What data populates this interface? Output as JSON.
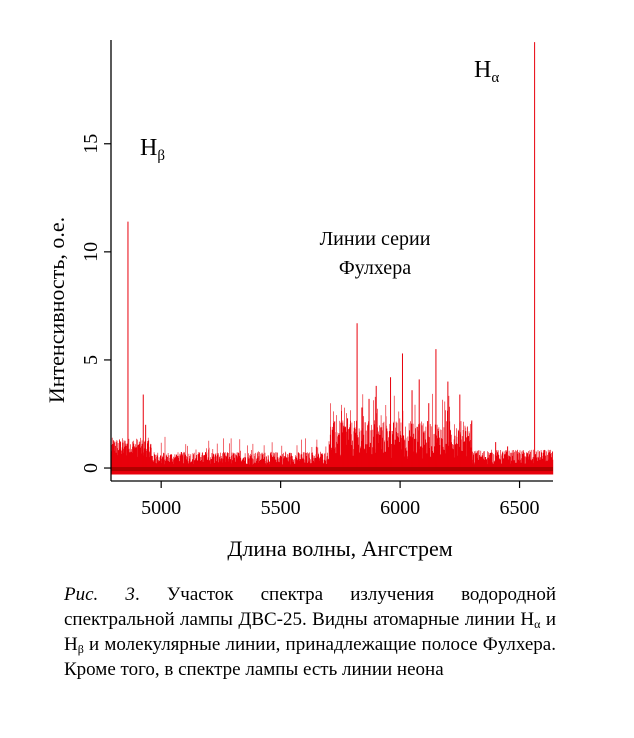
{
  "chart_data": {
    "type": "line",
    "xlabel": "Длина волны, Ангстрем",
    "ylabel": "Интенсивность, о.е.",
    "xlim": [
      4790,
      6640
    ],
    "ylim": [
      -0.6,
      19.8
    ],
    "xticks": [
      5000,
      5500,
      6000,
      6500
    ],
    "yticks": [
      0,
      5,
      10,
      15
    ],
    "series_color": "#e8000b",
    "annotations": [
      {
        "symbol": "H",
        "sub": "α",
        "x": 6470,
        "y": 18.0
      },
      {
        "symbol": "H",
        "sub": "β",
        "x": 4900,
        "y": 14.6
      },
      {
        "text_line1": "Линии серии",
        "text_line2": "Фулхера",
        "x": 5900,
        "y": 10.5
      }
    ],
    "peaks": [
      {
        "x": 4861,
        "y": 11.4
      },
      {
        "x": 6563,
        "y": 19.7
      },
      {
        "x": 4925,
        "y": 3.4
      },
      {
        "x": 4935,
        "y": 2.0
      },
      {
        "x": 4830,
        "y": 1.2
      },
      {
        "x": 5820,
        "y": 6.7
      },
      {
        "x": 5900,
        "y": 3.8
      },
      {
        "x": 5960,
        "y": 4.2
      },
      {
        "x": 6010,
        "y": 5.3
      },
      {
        "x": 6080,
        "y": 4.1
      },
      {
        "x": 6150,
        "y": 5.5
      },
      {
        "x": 6200,
        "y": 4.0
      },
      {
        "x": 6250,
        "y": 3.4
      },
      {
        "x": 6050,
        "y": 3.6
      },
      {
        "x": 5870,
        "y": 3.2
      },
      {
        "x": 5760,
        "y": 2.1
      },
      {
        "x": 5780,
        "y": 2.3
      },
      {
        "x": 5840,
        "y": 2.8
      },
      {
        "x": 6120,
        "y": 3.0
      },
      {
        "x": 6300,
        "y": 2.2
      },
      {
        "x": 6400,
        "y": 1.2
      },
      {
        "x": 6450,
        "y": 1.0
      }
    ],
    "grid": false,
    "legend": "none"
  },
  "caption": {
    "fig_label": "Рис. 3",
    "part1": ". Участок спектра излучения водородной спектральной лампы ДВС-25. Видны атомарные линии H",
    "sub_alpha": "α",
    "part2": " и H",
    "sub_beta": "β",
    "part3": " и молекулярные линии, принадлежащие полосе Фулхера. Кроме того, в спектре лампы есть линии неона"
  }
}
